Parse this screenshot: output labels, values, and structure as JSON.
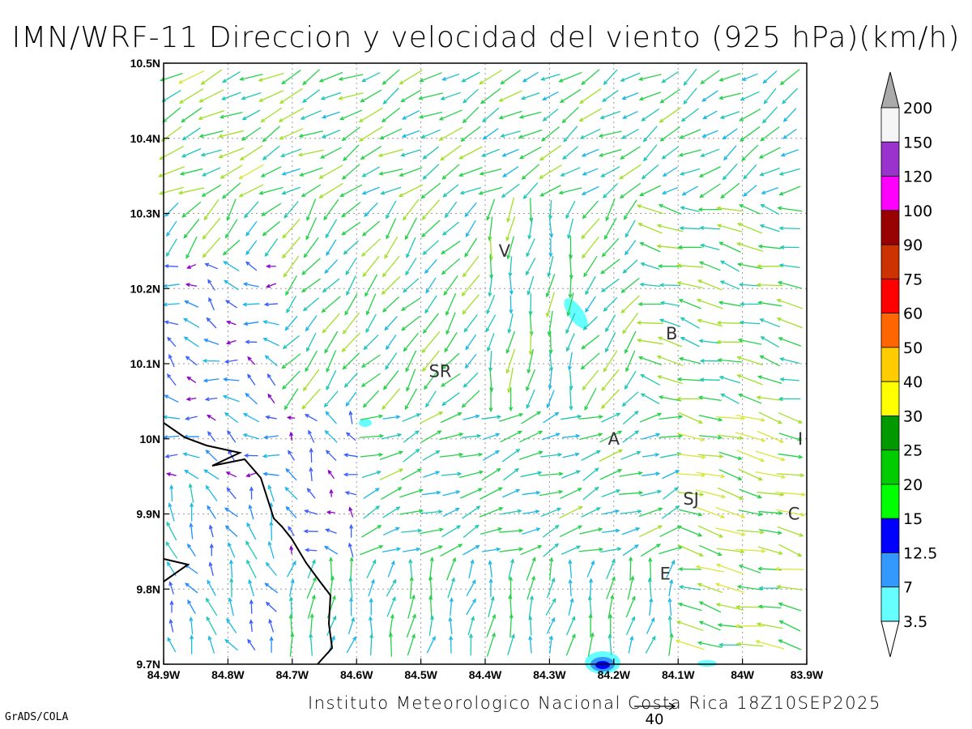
{
  "title": "IMN/WRF-11 Direccion y velocidad del viento (925 hPa)(km/h)",
  "footer": "Instituto Meteorologico Nacional Costa Rica 18Z10SEP2025",
  "credit": "GrADS/COLA",
  "map": {
    "lon_range": [
      -84.9,
      -83.9
    ],
    "lat_range": [
      9.7,
      10.5
    ],
    "x_ticks": [
      "84.9W",
      "84.8W",
      "84.7W",
      "84.6W",
      "84.5W",
      "84.4W",
      "84.3W",
      "84.2W",
      "84.1W",
      "84W",
      "83.9W"
    ],
    "y_ticks": [
      "9.7N",
      "9.8N",
      "9.9N",
      "10N",
      "10.1N",
      "10.2N",
      "10.3N",
      "10.4N",
      "10.5N"
    ],
    "grid": true,
    "cities": [
      {
        "label": "V",
        "lon": -84.37,
        "lat": 10.25
      },
      {
        "label": "SR",
        "lon": -84.47,
        "lat": 10.09
      },
      {
        "label": "B",
        "lon": -84.11,
        "lat": 10.14
      },
      {
        "label": "A",
        "lon": -84.2,
        "lat": 10.0
      },
      {
        "label": "I",
        "lon": -83.91,
        "lat": 10.0
      },
      {
        "label": "SJ",
        "lon": -84.08,
        "lat": 9.92
      },
      {
        "label": "C",
        "lon": -83.92,
        "lat": 9.9
      },
      {
        "label": "E",
        "lon": -84.12,
        "lat": 9.82
      }
    ],
    "reference_vector": {
      "value": "40"
    }
  },
  "colorbar": {
    "labels": [
      "200",
      "150",
      "120",
      "100",
      "90",
      "75",
      "60",
      "50",
      "40",
      "30",
      "25",
      "20",
      "15",
      "12.5",
      "7",
      "3.5"
    ],
    "colors": [
      "#f5f5f5",
      "#9933cc",
      "#ff00ff",
      "#990000",
      "#cc3300",
      "#ff0000",
      "#ff6600",
      "#ffcc00",
      "#ffff00",
      "#009900",
      "#00cc00",
      "#00ff00",
      "#0000ff",
      "#3399ff",
      "#66ffff"
    ],
    "top_arrow_color": "#aaaaaa",
    "bottom_arrow_color": "#ffffff"
  }
}
